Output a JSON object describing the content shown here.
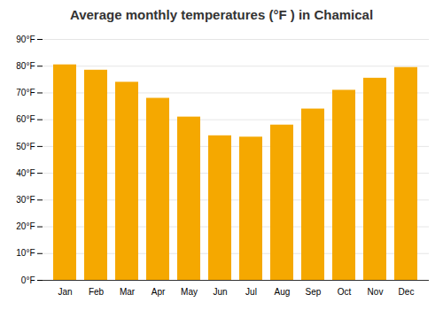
{
  "chart_data": {
    "type": "bar",
    "title": "Average monthly temperatures (°F ) in Chamical",
    "categories": [
      "Jan",
      "Feb",
      "Mar",
      "Apr",
      "May",
      "Jun",
      "Jul",
      "Aug",
      "Sep",
      "Oct",
      "Nov",
      "Dec"
    ],
    "values": [
      80.5,
      78.5,
      74.0,
      68.0,
      61.0,
      54.0,
      53.5,
      58.0,
      64.0,
      71.0,
      75.5,
      79.5
    ],
    "color": "#F5A800",
    "ylim": [
      0,
      90
    ],
    "yticks": [
      {
        "value": 0,
        "label": "0°F"
      },
      {
        "value": 10,
        "label": "10°F"
      },
      {
        "value": 20,
        "label": "20°F"
      },
      {
        "value": 30,
        "label": "30°F"
      },
      {
        "value": 40,
        "label": "40°F"
      },
      {
        "value": 50,
        "label": "50°F"
      },
      {
        "value": 60,
        "label": "60°F"
      },
      {
        "value": 70,
        "label": "70°F"
      },
      {
        "value": 80,
        "label": "80°F"
      },
      {
        "value": 90,
        "label": "90°F"
      }
    ],
    "grid": true
  }
}
